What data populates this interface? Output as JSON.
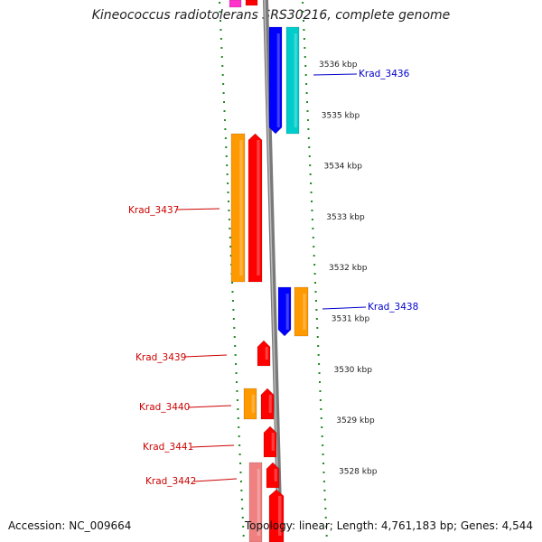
{
  "title": "Kineococcus radiotolerans SRS30216, complete genome",
  "accession": "Accession: NC_009664",
  "stats": "Topology: linear; Length: 4,761,183 bp; Genes: 4,544",
  "colors": {
    "backbone": "#888888",
    "tick": "#228822",
    "red": "#ff0000",
    "orange": "#ff9900",
    "blue": "#0000ff",
    "cyan": "#00cccc",
    "pink": "#f08080",
    "magenta": "#ff33cc",
    "label_red": "#cc0000",
    "label_blue": "#0000cc"
  },
  "kbp_labels": [
    {
      "text": "3536 kbp",
      "pos": 3536
    },
    {
      "text": "3535 kbp",
      "pos": 3535
    },
    {
      "text": "3534 kbp",
      "pos": 3534
    },
    {
      "text": "3533 kbp",
      "pos": 3533
    },
    {
      "text": "3532 kbp",
      "pos": 3532
    },
    {
      "text": "3531 kbp",
      "pos": 3531
    },
    {
      "text": "3530 kbp",
      "pos": 3530
    },
    {
      "text": "3529 kbp",
      "pos": 3529
    },
    {
      "text": "3528 kbp",
      "pos": 3528
    }
  ],
  "gene_labels": [
    {
      "text": "Krad_3436",
      "side": "right",
      "color": "blue"
    },
    {
      "text": "Krad_3437",
      "side": "left",
      "color": "red"
    },
    {
      "text": "Krad_3438",
      "side": "right",
      "color": "blue"
    },
    {
      "text": "Krad_3439",
      "side": "left",
      "color": "red"
    },
    {
      "text": "Krad_3440",
      "side": "left",
      "color": "red"
    },
    {
      "text": "Krad_3441",
      "side": "left",
      "color": "red"
    },
    {
      "text": "Krad_3442",
      "side": "left",
      "color": "red"
    }
  ]
}
